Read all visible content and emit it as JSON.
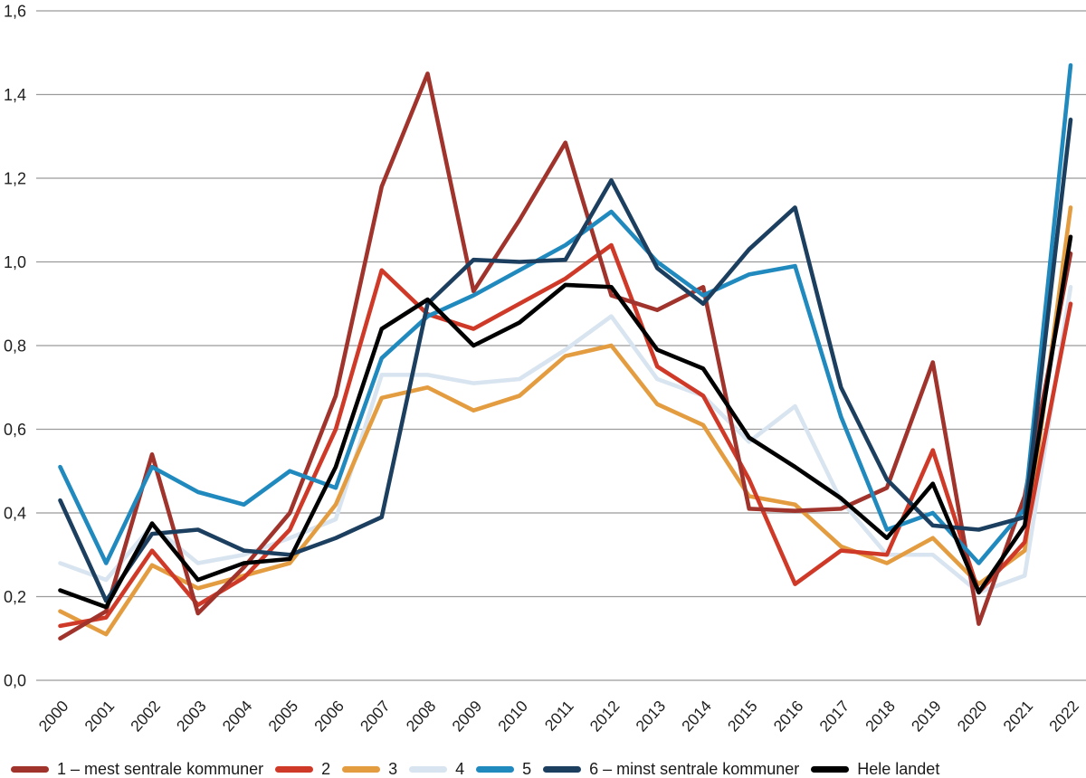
{
  "chart_data": {
    "type": "line",
    "title": "",
    "xlabel": "",
    "ylabel": "",
    "ylim": [
      0.0,
      1.6
    ],
    "y_tick_step": 0.2,
    "y_tick_labels": [
      "0,0",
      "0,2",
      "0,4",
      "0,6",
      "0,8",
      "1,0",
      "1,2",
      "1,4",
      "1,6"
    ],
    "x_tick_labels": [
      "2000",
      "2001",
      "2002",
      "2003",
      "2004",
      "2005",
      "2006",
      "2007",
      "2008",
      "2009",
      "2010",
      "2011",
      "2012",
      "2013",
      "2014",
      "2015",
      "2016",
      "2017",
      "2018",
      "2019",
      "2020",
      "2021",
      "2022"
    ],
    "grid": true,
    "legend_position": "bottom",
    "series": [
      {
        "name": "1 – mest sentrale kommuner",
        "color": "#A0332B",
        "values": [
          0.1,
          0.165,
          0.54,
          0.16,
          0.27,
          0.4,
          0.68,
          1.18,
          1.45,
          0.93,
          1.1,
          1.285,
          0.92,
          0.885,
          0.94,
          0.41,
          0.405,
          0.41,
          0.46,
          0.76,
          0.135,
          0.44,
          1.02
        ]
      },
      {
        "name": "2",
        "color": "#CF3928",
        "values": [
          0.13,
          0.15,
          0.31,
          0.18,
          0.245,
          0.36,
          0.6,
          0.98,
          0.875,
          0.84,
          0.9,
          0.96,
          1.04,
          0.75,
          0.68,
          0.48,
          0.23,
          0.31,
          0.3,
          0.55,
          0.21,
          0.33,
          0.9
        ]
      },
      {
        "name": "3",
        "color": "#E39C3F",
        "values": [
          0.165,
          0.11,
          0.275,
          0.22,
          0.25,
          0.28,
          0.42,
          0.675,
          0.7,
          0.645,
          0.68,
          0.775,
          0.8,
          0.66,
          0.61,
          0.44,
          0.42,
          0.32,
          0.28,
          0.34,
          0.23,
          0.31,
          1.13
        ]
      },
      {
        "name": "4",
        "color": "#D8E4F0",
        "values": [
          0.28,
          0.24,
          0.37,
          0.28,
          0.3,
          0.34,
          0.385,
          0.73,
          0.73,
          0.71,
          0.72,
          0.79,
          0.87,
          0.72,
          0.68,
          0.57,
          0.655,
          0.43,
          0.3,
          0.3,
          0.21,
          0.25,
          0.94
        ]
      },
      {
        "name": "5",
        "color": "#2089BE",
        "values": [
          0.51,
          0.28,
          0.51,
          0.45,
          0.42,
          0.5,
          0.46,
          0.77,
          0.87,
          0.92,
          0.98,
          1.04,
          1.12,
          1.0,
          0.92,
          0.97,
          0.99,
          0.63,
          0.36,
          0.4,
          0.28,
          0.41,
          1.47
        ]
      },
      {
        "name": "6 – minst sentrale kommuner",
        "color": "#1C3F5F",
        "values": [
          0.43,
          0.19,
          0.35,
          0.36,
          0.31,
          0.3,
          0.34,
          0.39,
          0.9,
          1.005,
          1.0,
          1.005,
          1.195,
          0.985,
          0.9,
          1.03,
          1.13,
          0.7,
          0.48,
          0.37,
          0.36,
          0.39,
          1.34
        ]
      },
      {
        "name": "Hele landet",
        "color": "#000000",
        "values": [
          0.215,
          0.175,
          0.375,
          0.24,
          0.28,
          0.29,
          0.51,
          0.84,
          0.91,
          0.8,
          0.855,
          0.945,
          0.94,
          0.79,
          0.745,
          0.58,
          0.51,
          0.435,
          0.34,
          0.47,
          0.21,
          0.37,
          1.06
        ]
      }
    ],
    "draw_order": [
      3,
      2,
      1,
      0,
      4,
      5,
      6
    ]
  }
}
